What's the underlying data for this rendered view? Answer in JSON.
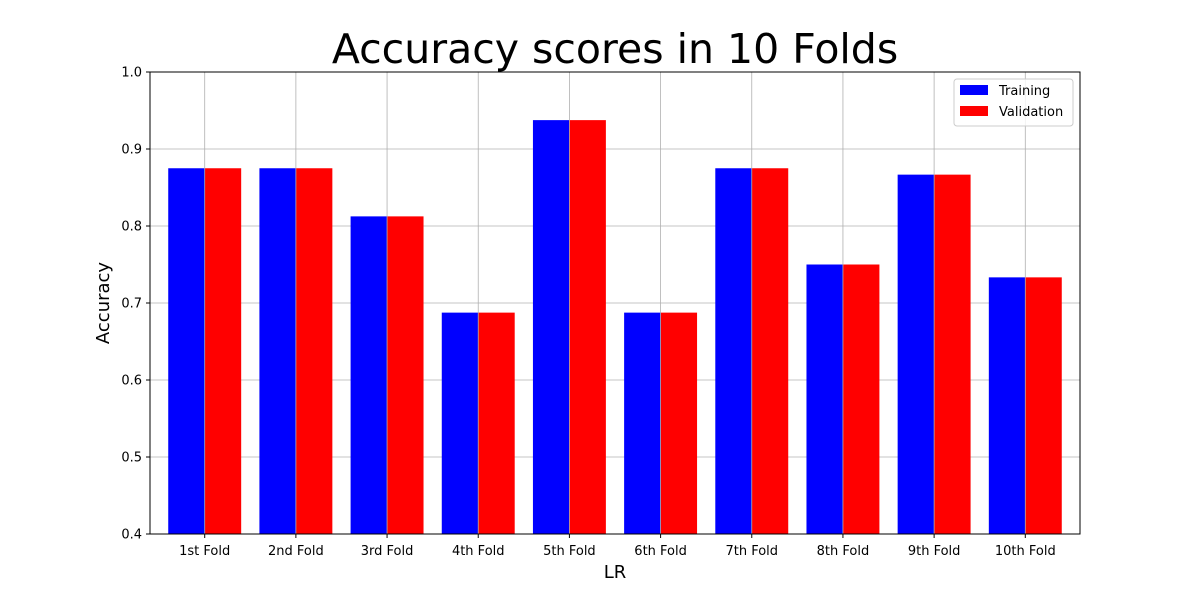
{
  "chart_data": {
    "type": "bar",
    "title": "Accuracy scores in 10 Folds",
    "xlabel": "LR",
    "ylabel": "Accuracy",
    "categories": [
      "1st Fold",
      "2nd Fold",
      "3rd Fold",
      "4th Fold",
      "5th Fold",
      "6th Fold",
      "7th Fold",
      "8th Fold",
      "9th Fold",
      "10th Fold"
    ],
    "series": [
      {
        "name": "Training",
        "color": "#0000ff",
        "values": [
          0.875,
          0.875,
          0.8125,
          0.6875,
          0.9375,
          0.6875,
          0.875,
          0.75,
          0.8667,
          0.7333
        ]
      },
      {
        "name": "Validation",
        "color": "#ff0000",
        "values": [
          0.875,
          0.875,
          0.8125,
          0.6875,
          0.9375,
          0.6875,
          0.875,
          0.75,
          0.8667,
          0.7333
        ]
      }
    ],
    "ylim": [
      0.4,
      1.0
    ],
    "yticks": [
      "0.4",
      "0.5",
      "0.6",
      "0.7",
      "0.8",
      "0.9",
      "1.0"
    ],
    "grid": true,
    "legend_position": "top-right"
  }
}
